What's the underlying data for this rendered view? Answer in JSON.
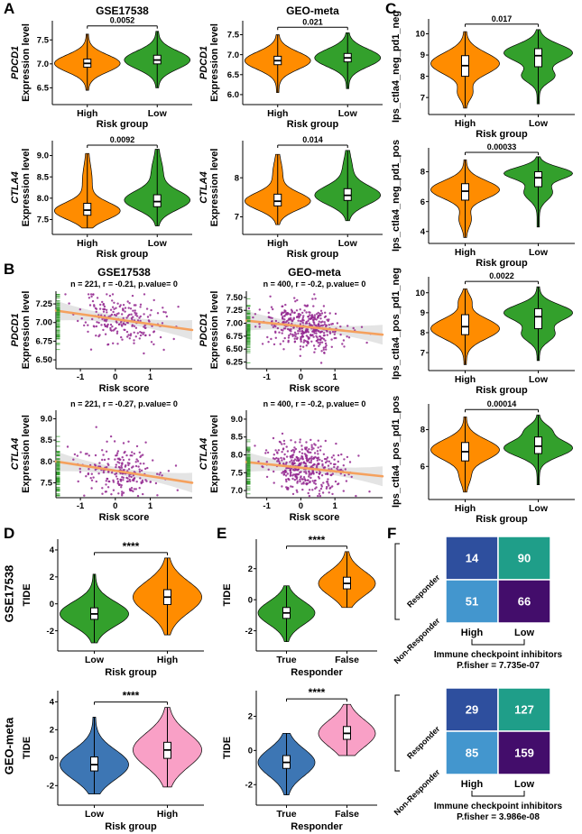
{
  "figure": {
    "panel_labels": [
      "A",
      "B",
      "C",
      "D",
      "E",
      "F"
    ],
    "row_labels": [
      "GSE17538",
      "GEO-meta"
    ]
  },
  "colors": {
    "high_orange": "#FF8C00",
    "low_green": "#33A02C",
    "blue": "#3D76B4",
    "pink": "#F9A0C6",
    "point": "#93278F",
    "line": "#F5A15E",
    "band": "#C9C9C9",
    "rug": "#33A02C"
  },
  "chart_data": [
    {
      "id": "A1",
      "type": "violin",
      "title": "GSE17538",
      "ylabel_gene": "PDCD1",
      "ylabel": "Expression level",
      "xlabel": "Risk group",
      "p": "0.0052",
      "y_ticks": [
        "6.5",
        "7.0",
        "7.5"
      ],
      "y_range": [
        6.15,
        7.9
      ],
      "groups": [
        {
          "label": "High",
          "color": "#FF8C00",
          "lo": 6.45,
          "q1": 6.93,
          "median": 7.01,
          "q3": 7.1,
          "hi": 7.62
        },
        {
          "label": "Low",
          "color": "#33A02C",
          "lo": 6.5,
          "q1": 7.0,
          "median": 7.08,
          "q3": 7.18,
          "hi": 7.68
        }
      ]
    },
    {
      "id": "A2",
      "type": "violin",
      "title": "GEO-meta",
      "ylabel_gene": "PDCD1",
      "ylabel": "Expression level",
      "xlabel": "Risk group",
      "p": "0.021",
      "y_ticks": [
        "6.0",
        "6.5",
        "7.0",
        "7.5"
      ],
      "y_range": [
        5.75,
        7.85
      ],
      "groups": [
        {
          "label": "High",
          "color": "#FF8C00",
          "lo": 6.05,
          "q1": 6.75,
          "median": 6.85,
          "q3": 6.96,
          "hi": 7.5
        },
        {
          "label": "Low",
          "color": "#33A02C",
          "lo": 6.15,
          "q1": 6.82,
          "median": 6.92,
          "q3": 7.03,
          "hi": 7.55
        }
      ]
    },
    {
      "id": "A3",
      "type": "violin",
      "ylabel_gene": "CTLA4",
      "ylabel": "Expression level",
      "xlabel": "Risk group",
      "p": "0.0092",
      "y_ticks": [
        "7.5",
        "8.0",
        "8.5",
        "9.0"
      ],
      "y_range": [
        7.15,
        9.35
      ],
      "groups": [
        {
          "label": "High",
          "color": "#FF8C00",
          "lo": 7.3,
          "q1": 7.6,
          "median": 7.72,
          "q3": 7.88,
          "hi": 9.05,
          "modes": [
            {
              "y": 7.7,
              "s": 0.2,
              "w": 1
            },
            {
              "y": 8.4,
              "s": 0.35,
              "w": 0.12
            }
          ]
        },
        {
          "label": "Low",
          "color": "#33A02C",
          "lo": 7.35,
          "q1": 7.8,
          "median": 7.92,
          "q3": 8.08,
          "hi": 9.15,
          "modes": [
            {
              "y": 7.95,
              "s": 0.22,
              "w": 1
            },
            {
              "y": 8.6,
              "s": 0.3,
              "w": 0.15
            }
          ]
        }
      ]
    },
    {
      "id": "A4",
      "type": "violin",
      "ylabel_gene": "CTLA4",
      "ylabel": "Expression level",
      "xlabel": "Risk group",
      "p": "0.014",
      "y_ticks": [
        "7",
        "8"
      ],
      "y_range": [
        6.55,
        8.95
      ],
      "groups": [
        {
          "label": "High",
          "color": "#FF8C00",
          "lo": 6.8,
          "q1": 7.28,
          "median": 7.4,
          "q3": 7.58,
          "hi": 8.6,
          "modes": [
            {
              "y": 7.4,
              "s": 0.22,
              "w": 1
            },
            {
              "y": 8.1,
              "s": 0.3,
              "w": 0.12
            }
          ]
        },
        {
          "label": "Low",
          "color": "#33A02C",
          "lo": 6.9,
          "q1": 7.42,
          "median": 7.55,
          "q3": 7.72,
          "hi": 8.7,
          "modes": [
            {
              "y": 7.55,
              "s": 0.24,
              "w": 1
            },
            {
              "y": 8.2,
              "s": 0.3,
              "w": 0.12
            }
          ]
        }
      ]
    },
    {
      "id": "C1",
      "type": "violin",
      "ylabel": "Ips_ctla4_neg_pd1_neg",
      "xlabel": "Risk group",
      "p": "0.017",
      "y_ticks": [
        "7",
        "8",
        "9",
        "10"
      ],
      "y_range": [
        6.2,
        10.7
      ],
      "groups": [
        {
          "label": "High",
          "color": "#FF8C00",
          "lo": 6.5,
          "q1": 8.0,
          "median": 8.5,
          "q3": 8.97,
          "hi": 10.1,
          "modes": [
            {
              "y": 8.6,
              "s": 0.5,
              "w": 1
            },
            {
              "y": 7.2,
              "s": 0.3,
              "w": 0.18
            }
          ]
        },
        {
          "label": "Low",
          "color": "#33A02C",
          "lo": 6.7,
          "q1": 8.45,
          "median": 8.97,
          "q3": 9.3,
          "hi": 10.2,
          "modes": [
            {
              "y": 9.1,
              "s": 0.4,
              "w": 1
            },
            {
              "y": 8.0,
              "s": 0.3,
              "w": 0.45
            }
          ]
        }
      ]
    },
    {
      "id": "C2",
      "type": "violin",
      "ylabel": "Ips_ctla4_neg_pd1_pos",
      "xlabel": "Risk group",
      "p": "0.00033",
      "y_ticks": [
        "4",
        "6",
        "8"
      ],
      "y_range": [
        3.2,
        9.6
      ],
      "groups": [
        {
          "label": "High",
          "color": "#FF8C00",
          "lo": 3.6,
          "q1": 6.1,
          "median": 6.7,
          "q3": 7.2,
          "hi": 8.8,
          "modes": [
            {
              "y": 6.8,
              "s": 0.6,
              "w": 1
            },
            {
              "y": 4.8,
              "s": 0.5,
              "w": 0.15
            }
          ]
        },
        {
          "label": "Low",
          "color": "#33A02C",
          "lo": 4.3,
          "q1": 7.0,
          "median": 7.6,
          "q3": 8.0,
          "hi": 9.0,
          "modes": [
            {
              "y": 7.9,
              "s": 0.4,
              "w": 1
            },
            {
              "y": 6.6,
              "s": 0.5,
              "w": 0.4
            }
          ]
        }
      ]
    },
    {
      "id": "C3",
      "type": "violin",
      "ylabel": "Ips_ctla4_pos_pd1_neg",
      "xlabel": "Risk group",
      "p": "0.0022",
      "y_ticks": [
        "7",
        "8",
        "9",
        "10"
      ],
      "y_range": [
        6.1,
        10.8
      ],
      "groups": [
        {
          "label": "High",
          "color": "#FF8C00",
          "lo": 6.4,
          "q1": 7.9,
          "median": 8.3,
          "q3": 8.9,
          "hi": 10.2,
          "modes": [
            {
              "y": 8.2,
              "s": 0.5,
              "w": 1
            },
            {
              "y": 9.6,
              "s": 0.3,
              "w": 0.15
            }
          ]
        },
        {
          "label": "Low",
          "color": "#33A02C",
          "lo": 6.6,
          "q1": 8.2,
          "median": 8.8,
          "q3": 9.2,
          "hi": 10.3,
          "modes": [
            {
              "y": 9.0,
              "s": 0.4,
              "w": 1
            },
            {
              "y": 7.9,
              "s": 0.35,
              "w": 0.45
            }
          ]
        }
      ]
    },
    {
      "id": "C4",
      "type": "violin",
      "ylabel": "Ips_ctla4_pos_pd1_pos",
      "xlabel": "Risk group",
      "p": "0.00014",
      "y_ticks": [
        "6",
        "8"
      ],
      "y_range": [
        4.2,
        9.4
      ],
      "groups": [
        {
          "label": "High",
          "color": "#FF8C00",
          "lo": 4.6,
          "q1": 6.3,
          "median": 6.8,
          "q3": 7.3,
          "hi": 8.7,
          "modes": [
            {
              "y": 6.9,
              "s": 0.55,
              "w": 1
            },
            {
              "y": 5.4,
              "s": 0.4,
              "w": 0.12
            }
          ]
        },
        {
          "label": "Low",
          "color": "#33A02C",
          "lo": 5.0,
          "q1": 6.7,
          "median": 7.1,
          "q3": 7.6,
          "hi": 8.8,
          "modes": [
            {
              "y": 7.0,
              "s": 0.45,
              "w": 1
            },
            {
              "y": 8.0,
              "s": 0.3,
              "w": 0.3
            }
          ]
        }
      ]
    },
    {
      "id": "B1",
      "type": "scatter",
      "title": "GSE17538",
      "subtitle": "n = 221, r = -0.21, p.value= 0",
      "ylabel_gene": "PDCD1",
      "ylabel": "Expression level",
      "xlabel": "Risk score",
      "x_ticks": [
        "-1",
        "0",
        "1"
      ],
      "x_range": [
        -1.7,
        2.2
      ],
      "y_ticks": [
        "6.50",
        "6.75",
        "7.00",
        "7.25"
      ],
      "y_range": [
        6.38,
        7.42
      ],
      "n": 221,
      "r": -0.21,
      "sd": 0.16,
      "seed": 11,
      "line": {
        "x": [
          -1.7,
          2.2
        ],
        "y": [
          7.16,
          6.9
        ]
      }
    },
    {
      "id": "B2",
      "type": "scatter",
      "title": "GEO-meta",
      "subtitle": "n = 400, r = -0.2, p.value= 0",
      "ylabel_gene": "PDCD1",
      "ylabel": "Expression level",
      "xlabel": "Risk score",
      "x_ticks": [
        "-1",
        "0",
        "1"
      ],
      "x_range": [
        -1.6,
        2.4
      ],
      "y_ticks": [
        "6.25",
        "6.50",
        "6.75",
        "7.00",
        "7.25",
        "7.50"
      ],
      "y_range": [
        6.12,
        7.62
      ],
      "n": 400,
      "r": -0.2,
      "sd": 0.2,
      "seed": 22,
      "line": {
        "x": [
          -1.6,
          2.4
        ],
        "y": [
          7.05,
          6.78
        ]
      }
    },
    {
      "id": "B3",
      "type": "scatter",
      "subtitle": "n = 221, r = -0.27, p.value= 0",
      "ylabel_gene": "CTLA4",
      "ylabel": "Expression level",
      "xlabel": "Risk score",
      "x_ticks": [
        "-1",
        "0",
        "1"
      ],
      "x_range": [
        -1.7,
        2.2
      ],
      "y_ticks": [
        "7.5",
        "8.0",
        "8.5",
        "9.0"
      ],
      "y_range": [
        7.15,
        9.2
      ],
      "n": 221,
      "r": -0.27,
      "sd": 0.3,
      "seed": 33,
      "line": {
        "x": [
          -1.7,
          2.2
        ],
        "y": [
          8.0,
          7.5
        ]
      }
    },
    {
      "id": "B4",
      "type": "scatter",
      "subtitle": "n = 400, r = -0.2, p.value= 0",
      "ylabel_gene": "CTLA4",
      "ylabel": "Expression level",
      "xlabel": "Risk score",
      "x_ticks": [
        "-1",
        "0",
        "1"
      ],
      "x_range": [
        -1.6,
        2.4
      ],
      "y_ticks": [
        "7.0",
        "7.5",
        "8.0",
        "8.5",
        "9.0"
      ],
      "y_range": [
        6.8,
        9.25
      ],
      "n": 400,
      "r": -0.2,
      "sd": 0.33,
      "seed": 44,
      "line": {
        "x": [
          -1.6,
          2.4
        ],
        "y": [
          7.8,
          7.4
        ]
      }
    },
    {
      "id": "D1",
      "type": "violin",
      "ylabel": "TIDE",
      "xlabel": "Risk group",
      "sig": "****",
      "y_ticks": [
        "-2",
        "0",
        "2",
        "4"
      ],
      "y_range": [
        -3.5,
        4.8
      ],
      "groups": [
        {
          "label": "Low",
          "color": "#33A02C",
          "lo": -2.9,
          "q1": -1.15,
          "median": -0.75,
          "q3": -0.3,
          "hi": 2.2
        },
        {
          "label": "High",
          "color": "#FF8C00",
          "lo": -2.3,
          "q1": -0.05,
          "median": 0.5,
          "q3": 1.05,
          "hi": 3.4
        }
      ]
    },
    {
      "id": "D2",
      "type": "violin",
      "ylabel": "TIDE",
      "xlabel": "Risk group",
      "sig": "****",
      "y_ticks": [
        "-2",
        "0",
        "2",
        "4"
      ],
      "y_range": [
        -3.4,
        4.8
      ],
      "groups": [
        {
          "label": "Low",
          "color": "#3D76B4",
          "lo": -2.6,
          "q1": -0.95,
          "median": -0.5,
          "q3": 0.05,
          "hi": 2.9
        },
        {
          "label": "High",
          "color": "#F9A0C6",
          "lo": -2.1,
          "q1": -0.05,
          "median": 0.55,
          "q3": 1.1,
          "hi": 3.6
        }
      ]
    },
    {
      "id": "E1",
      "type": "violin",
      "ylabel": "TIDE",
      "xlabel": "Responder",
      "sig": "****",
      "y_ticks": [
        "-2",
        "0",
        "2"
      ],
      "y_range": [
        -3.3,
        3.9
      ],
      "groups": [
        {
          "label": "True",
          "color": "#33A02C",
          "lo": -2.7,
          "q1": -1.2,
          "median": -0.85,
          "q3": -0.5,
          "hi": 0.9
        },
        {
          "label": "False",
          "color": "#FF8C00",
          "lo": -0.5,
          "q1": 0.7,
          "median": 1.05,
          "q3": 1.45,
          "hi": 3.1
        }
      ]
    },
    {
      "id": "E2",
      "type": "violin",
      "ylabel": "TIDE",
      "xlabel": "Responder",
      "sig": "****",
      "y_ticks": [
        "-2",
        "0",
        "2"
      ],
      "y_range": [
        -3.2,
        3.5
      ],
      "groups": [
        {
          "label": "True",
          "color": "#3D76B4",
          "lo": -2.6,
          "q1": -1.05,
          "median": -0.7,
          "q3": -0.3,
          "hi": 1.0
        },
        {
          "label": "False",
          "color": "#F9A0C6",
          "lo": -0.3,
          "q1": 0.65,
          "median": 1.0,
          "q3": 1.4,
          "hi": 2.7
        }
      ]
    },
    {
      "id": "F1",
      "type": "matrix",
      "values": [
        [
          "14",
          "90"
        ],
        [
          "51",
          "66"
        ]
      ],
      "cell_colors": [
        [
          "#2E4F9E",
          "#1F9E89"
        ],
        [
          "#4396CE",
          "#430D6B"
        ]
      ],
      "row_labels": [
        "Responder",
        "Non-Responder"
      ],
      "col_labels": [
        "High",
        "Low"
      ],
      "caption": "Immune checkpoint inhibitors",
      "pfisher": "P.fisher = 7.735e-07"
    },
    {
      "id": "F2",
      "type": "matrix",
      "values": [
        [
          "29",
          "127"
        ],
        [
          "85",
          "159"
        ]
      ],
      "cell_colors": [
        [
          "#2E4F9E",
          "#1F9E89"
        ],
        [
          "#4396CE",
          "#430D6B"
        ]
      ],
      "row_labels": [
        "Responder",
        "Non-Responder"
      ],
      "col_labels": [
        "High",
        "Low"
      ],
      "caption": "Immune checkpoint inhibitors",
      "pfisher": "P.fisher = 3.986e-08"
    }
  ]
}
